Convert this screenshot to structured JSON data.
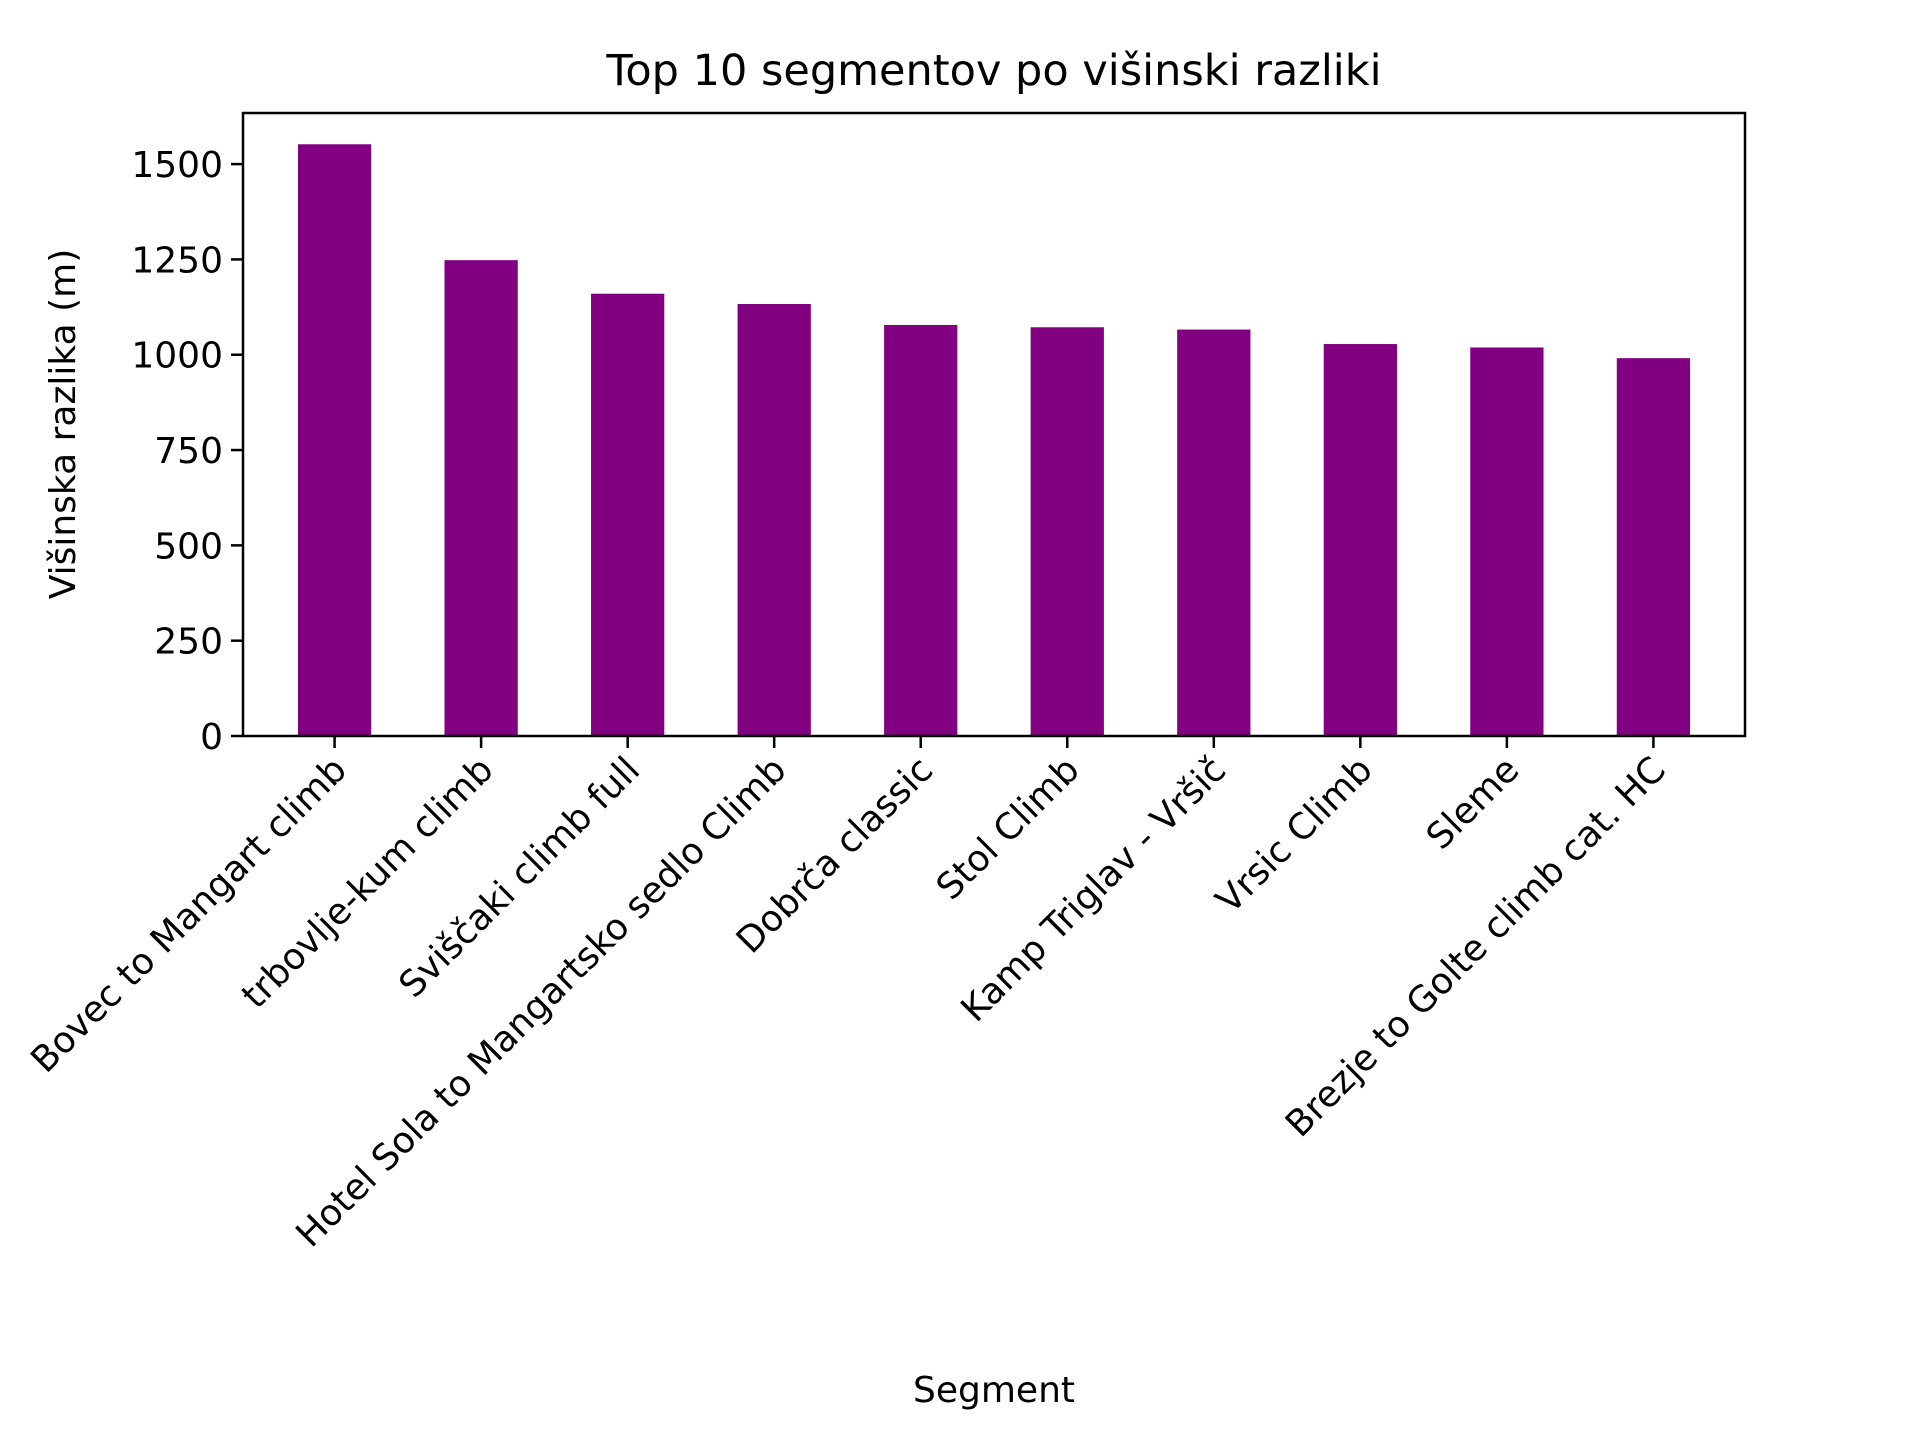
{
  "chart_data": {
    "type": "bar",
    "title": "Top 10 segmentov po višinski razliki",
    "xlabel": "Segment",
    "ylabel": "Višinska razlika (m)",
    "categories": [
      "Bovec to Mangart climb",
      "trbovlje-kum climb",
      "Sviščaki climb full",
      "Hotel Sola to Mangartsko sedlo Climb",
      "Dobrča classic",
      "Stol Climb",
      "Kamp Triglav - Vršič",
      "Vrsic Climb",
      "Sleme",
      "Brezje to Golte climb cat. HC"
    ],
    "values": [
      1552,
      1248,
      1160,
      1133,
      1078,
      1072,
      1066,
      1028,
      1019,
      991
    ],
    "ylim": [
      0,
      1634
    ],
    "yticks": [
      0,
      250,
      500,
      750,
      1000,
      1250,
      1500
    ],
    "ytick_labels": [
      "0",
      "250",
      "500",
      "750",
      "1000",
      "1250",
      "1500"
    ],
    "bar_color": "#800080",
    "grid": false,
    "legend": "none"
  }
}
